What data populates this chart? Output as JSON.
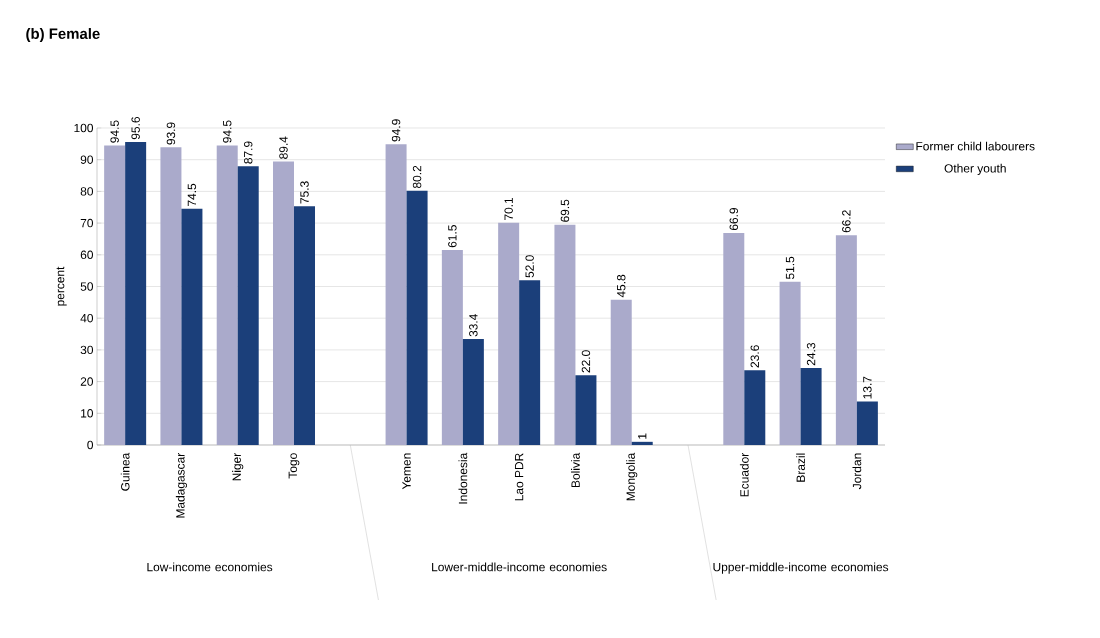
{
  "chart_data": {
    "type": "bar",
    "title": "(b) Female",
    "ylabel": "percent",
    "categories": [
      "Guinea",
      "Madagascar",
      "Niger",
      "Togo",
      null,
      "Yemen",
      "Indonesia",
      "Lao PDR",
      "Bolivia",
      "Mongolia",
      null,
      "Ecuador",
      "Brazil",
      "Jordan"
    ],
    "series": [
      {
        "name": "Former child labourers",
        "color": "#aaaacb",
        "values": [
          94.5,
          93.9,
          94.5,
          89.4,
          null,
          94.9,
          61.5,
          70.1,
          69.5,
          45.8,
          null,
          66.9,
          51.5,
          66.2
        ],
        "value_labels": [
          "94.5",
          "93.9",
          "94.5",
          "89.4",
          null,
          "94.9",
          "61.5",
          "70.1",
          "69.5",
          "45.8",
          null,
          "66.9",
          "51.5",
          "66.2"
        ]
      },
      {
        "name": "Other youth",
        "color": "#1b3f7a",
        "values": [
          95.6,
          74.5,
          87.9,
          75.3,
          null,
          80.2,
          33.4,
          52.0,
          22.0,
          1,
          null,
          23.6,
          24.3,
          13.7
        ],
        "value_labels": [
          "95.6",
          "74.5",
          "87.9",
          "75.3",
          null,
          "80.2",
          "33.4",
          "52.0",
          "22.0",
          "1",
          null,
          "23.6",
          "24.3",
          "13.7"
        ]
      }
    ],
    "ylim": [
      0,
      100
    ],
    "yticks": [
      0,
      10,
      20,
      30,
      40,
      50,
      60,
      70,
      80,
      90,
      100
    ],
    "grid": "y",
    "legend": "top right",
    "annotations": [
      "Low-income economies",
      "Lower-middle-income economies",
      "Upper-middle-income economies"
    ]
  }
}
